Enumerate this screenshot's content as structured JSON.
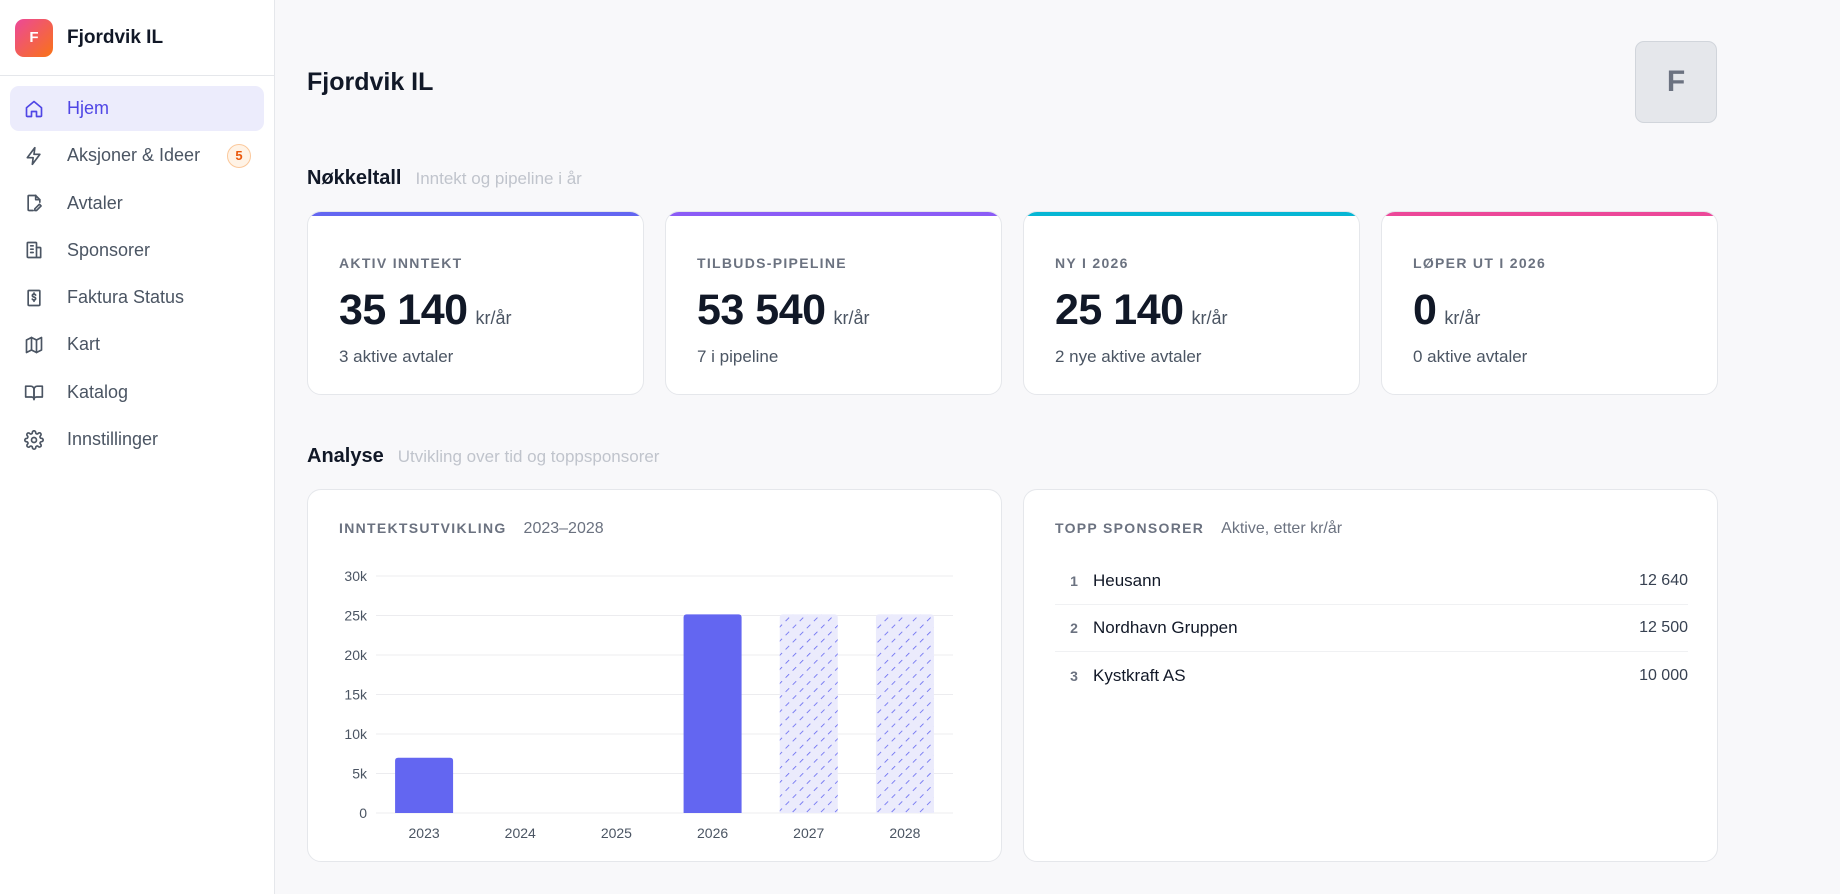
{
  "sidebar": {
    "brand_initial": "F",
    "brand_name": "Fjordvik IL",
    "items": [
      {
        "label": "Hjem",
        "icon": "home-icon",
        "active": true
      },
      {
        "label": "Aksjoner & Ideer",
        "icon": "lightning-icon",
        "badge": "5"
      },
      {
        "label": "Avtaler",
        "icon": "document-edit-icon"
      },
      {
        "label": "Sponsorer",
        "icon": "building-icon"
      },
      {
        "label": "Faktura Status",
        "icon": "invoice-icon"
      },
      {
        "label": "Kart",
        "icon": "map-icon"
      },
      {
        "label": "Katalog",
        "icon": "book-icon"
      },
      {
        "label": "Innstillinger",
        "icon": "gear-icon"
      }
    ]
  },
  "header": {
    "title": "Fjordvik IL",
    "avatar_initial": "F"
  },
  "kpi_section": {
    "title": "Nøkkeltall",
    "subtitle": "Inntekt og pipeline i år"
  },
  "kpis": [
    {
      "label": "AKTIV INNTEKT",
      "value": "35 140",
      "unit": "kr/år",
      "note": "3 aktive avtaler",
      "accent": "#6366f1"
    },
    {
      "label": "TILBUDS-PIPELINE",
      "value": "53 540",
      "unit": "kr/år",
      "note": "7 i pipeline",
      "accent": "#8b5cf6"
    },
    {
      "label": "NY I 2026",
      "value": "25 140",
      "unit": "kr/år",
      "note": "2 nye aktive avtaler",
      "accent": "#06b6d4"
    },
    {
      "label": "LØPER UT I 2026",
      "value": "0",
      "unit": "kr/år",
      "note": "0 aktive avtaler",
      "accent": "#ec4899"
    }
  ],
  "analysis_section": {
    "title": "Analyse",
    "subtitle": "Utvikling over tid og toppsponsorer"
  },
  "revenue_card": {
    "title": "INNTEKTSUTVIKLING",
    "subtitle": "2023–2028"
  },
  "chart_data": {
    "type": "bar",
    "categories": [
      "2023",
      "2024",
      "2025",
      "2026",
      "2027",
      "2028"
    ],
    "values": [
      7000,
      0,
      0,
      25140,
      25140,
      25140
    ],
    "projected": [
      false,
      false,
      false,
      false,
      true,
      true
    ],
    "ylim": [
      0,
      30000
    ],
    "yticks": [
      0,
      5000,
      10000,
      15000,
      20000,
      25000,
      30000
    ],
    "ytick_labels": [
      "0",
      "5k",
      "10k",
      "15k",
      "20k",
      "25k",
      "30k"
    ],
    "grid": true,
    "bar_color": "#6366f1"
  },
  "sponsors_card": {
    "title": "TOPP SPONSORER",
    "subtitle": "Aktive, etter kr/år",
    "rows": [
      {
        "rank": "1",
        "name": "Heusann",
        "value": "12 640"
      },
      {
        "rank": "2",
        "name": "Nordhavn Gruppen",
        "value": "12 500"
      },
      {
        "rank": "3",
        "name": "Kystkraft AS",
        "value": "10 000"
      }
    ]
  }
}
